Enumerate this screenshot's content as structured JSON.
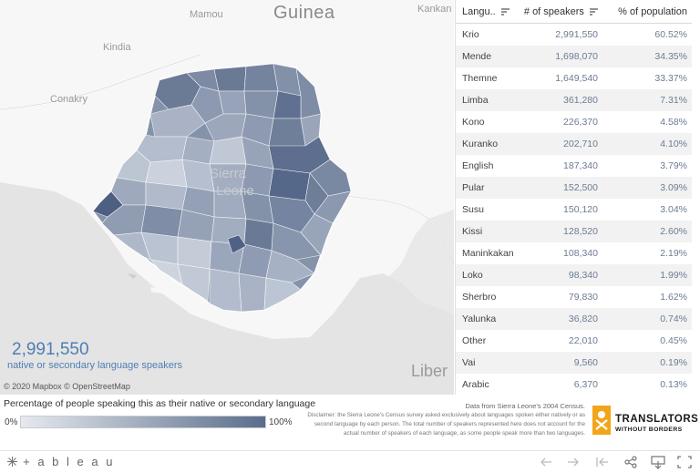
{
  "map": {
    "places": {
      "guinea": "Guinea",
      "mamou": "Mamou",
      "kankan": "Kankan",
      "kindia": "Kindia",
      "conakry": "Conakry",
      "sierra": "Sierra",
      "leone": "Leone",
      "liberia": "Liber"
    },
    "big_number": "2,991,550",
    "big_caption": "native or secondary language speakers",
    "copyright": "© 2020 Mapbox © OpenStreetMap",
    "colors": {
      "background": "#e9e9e9",
      "land": "#f7f7f7",
      "dark": "#5a6d8a",
      "light": "#d5dbe4"
    }
  },
  "table": {
    "headers": {
      "language": "Langu..",
      "speakers": "# of speakers",
      "percent": "% of population"
    },
    "rows": [
      {
        "language": "Krio",
        "speakers": "2,991,550",
        "percent": "60.52%"
      },
      {
        "language": "Mende",
        "speakers": "1,698,070",
        "percent": "34.35%"
      },
      {
        "language": "Themne",
        "speakers": "1,649,540",
        "percent": "33.37%"
      },
      {
        "language": "Limba",
        "speakers": "361,280",
        "percent": "7.31%"
      },
      {
        "language": "Kono",
        "speakers": "226,370",
        "percent": "4.58%"
      },
      {
        "language": "Kuranko",
        "speakers": "202,710",
        "percent": "4.10%"
      },
      {
        "language": "English",
        "speakers": "187,340",
        "percent": "3.79%"
      },
      {
        "language": "Pular",
        "speakers": "152,500",
        "percent": "3.09%"
      },
      {
        "language": "Susu",
        "speakers": "150,120",
        "percent": "3.04%"
      },
      {
        "language": "Kissi",
        "speakers": "128,520",
        "percent": "2.60%"
      },
      {
        "language": "Maninkakan",
        "speakers": "108,340",
        "percent": "2.19%"
      },
      {
        "language": "Loko",
        "speakers": "98,340",
        "percent": "1.99%"
      },
      {
        "language": "Sherbro",
        "speakers": "79,830",
        "percent": "1.62%"
      },
      {
        "language": "Yalunka",
        "speakers": "36,820",
        "percent": "0.74%"
      },
      {
        "language": "Other",
        "speakers": "22,010",
        "percent": "0.45%"
      },
      {
        "language": "Vai",
        "speakers": "9,560",
        "percent": "0.19%"
      },
      {
        "language": "Arabic",
        "speakers": "6,370",
        "percent": "0.13%"
      }
    ]
  },
  "legend": {
    "title": "Percentage of people speaking this as their native or secondary language",
    "min": "0%",
    "max": "100%"
  },
  "source": "Data from Sierra Leone's 2004 Census.",
  "disclaimer": "Disclaimer: the Sierra Leone's Census survey asked exclusively about languages spoken either natively or as second language by each person. The total number of speakers represented here does not account for the actual number of speakers of each language, as some people speak more than two languages.",
  "logo": {
    "name": "TRANSLATORS",
    "sub": "WITHOUT BORDERS",
    "color": "#f3a51a"
  },
  "toolbar": {
    "brand": "+ a b l e a u",
    "icons": [
      "undo-icon",
      "redo-icon",
      "revert-icon",
      "share-icon",
      "download-icon",
      "fullscreen-icon"
    ]
  }
}
